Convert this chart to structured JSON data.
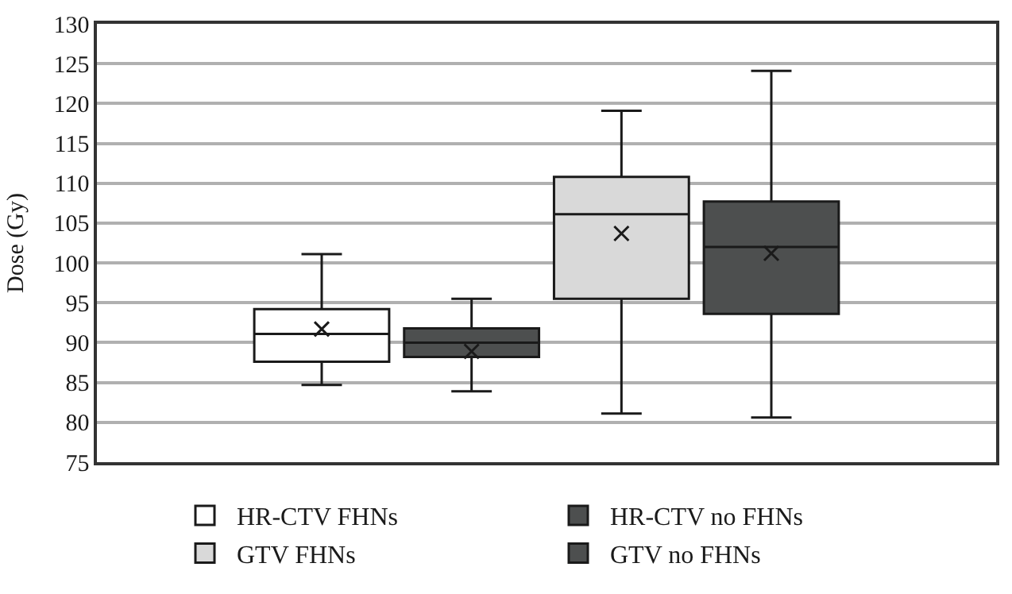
{
  "chart_data": {
    "type": "box",
    "ylabel": "Dose (Gy)",
    "categories": [
      null
    ],
    "ylim": [
      75,
      130
    ],
    "yticks": [
      75,
      80,
      85,
      90,
      95,
      100,
      105,
      110,
      115,
      120,
      125,
      130
    ],
    "grid": "y",
    "legend": "bottom",
    "marker": "cross",
    "series": [
      {
        "name": "HR-CTV FHNs",
        "color": "#ffffff",
        "boxes": [
          {
            "low": 84.7,
            "q1": 87.6,
            "median": 91.1,
            "q3": 94.2,
            "high": 101.1,
            "mean": 91.7
          }
        ]
      },
      {
        "name": "HR-CTV no FHNs",
        "color": "#4d4f4f",
        "boxes": [
          {
            "low": 83.9,
            "q1": 88.2,
            "median": 90.0,
            "q3": 91.8,
            "high": 95.5,
            "mean": 88.9
          }
        ]
      },
      {
        "name": "GTV FHNs",
        "color": "#d9d9d9",
        "boxes": [
          {
            "low": 81.1,
            "q1": 95.5,
            "median": 106.1,
            "q3": 110.8,
            "high": 119.1,
            "mean": 103.7
          }
        ]
      },
      {
        "name": "GTV no FHNs",
        "color": "#4d4f4f",
        "boxes": [
          {
            "low": 80.6,
            "q1": 93.6,
            "median": 102.0,
            "q3": 107.7,
            "high": 124.1,
            "mean": 101.2
          }
        ]
      }
    ]
  }
}
